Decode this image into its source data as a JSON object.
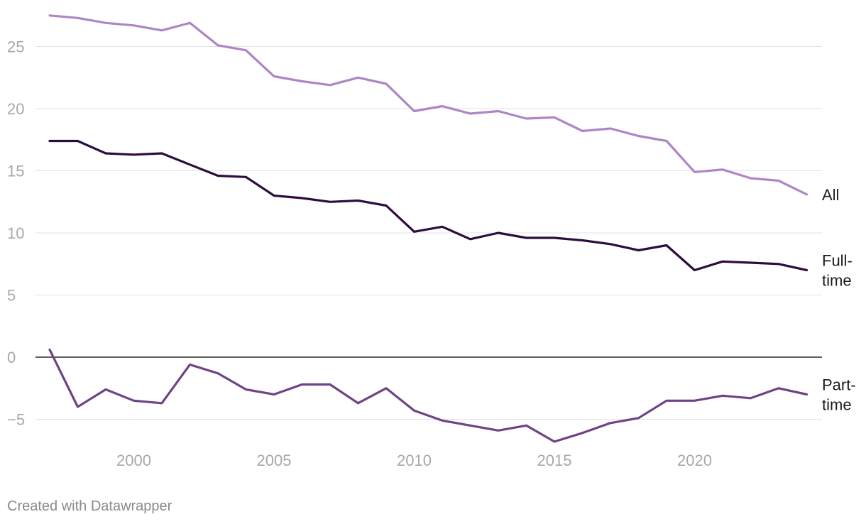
{
  "chart_data": {
    "type": "line",
    "title": "",
    "xlabel": "",
    "ylabel": "",
    "x": [
      1997,
      1998,
      1999,
      2000,
      2001,
      2002,
      2003,
      2004,
      2005,
      2006,
      2007,
      2008,
      2009,
      2010,
      2011,
      2012,
      2013,
      2014,
      2015,
      2016,
      2017,
      2018,
      2019,
      2020,
      2021,
      2022,
      2023,
      2024
    ],
    "x_ticks": [
      "2000",
      "2005",
      "2010",
      "2015",
      "2020"
    ],
    "y_ticks": [
      "25",
      "20",
      "15",
      "10",
      "5",
      "0",
      "−5"
    ],
    "xlim": [
      1996.5,
      2024.3
    ],
    "ylim": [
      -8,
      28
    ],
    "grid": true,
    "series": [
      {
        "name": "All",
        "label_lines": [
          "All"
        ],
        "color": "#ad86c6",
        "values": [
          27.5,
          27.3,
          26.9,
          26.7,
          26.3,
          26.9,
          25.1,
          24.7,
          22.6,
          22.2,
          21.9,
          22.5,
          22.0,
          19.8,
          20.2,
          19.6,
          19.8,
          19.2,
          19.3,
          18.2,
          18.4,
          17.8,
          17.4,
          14.9,
          15.1,
          14.4,
          14.2,
          13.1
        ]
      },
      {
        "name": "Full-time",
        "label_lines": [
          "Full-",
          "time"
        ],
        "color": "#2d0d3d",
        "values": [
          17.4,
          17.4,
          16.4,
          16.3,
          16.4,
          15.5,
          14.6,
          14.5,
          13.0,
          12.8,
          12.5,
          12.6,
          12.2,
          10.1,
          10.5,
          9.5,
          10.0,
          9.6,
          9.6,
          9.4,
          9.1,
          8.6,
          9.0,
          7.0,
          7.7,
          7.6,
          7.5,
          7.0
        ]
      },
      {
        "name": "Part-time",
        "label_lines": [
          "Part-",
          "time"
        ],
        "color": "#6e4484",
        "values": [
          0.6,
          -4.0,
          -2.6,
          -3.5,
          -3.7,
          -0.6,
          -1.3,
          -2.6,
          -3.0,
          -2.2,
          -2.2,
          -3.7,
          -2.5,
          -4.3,
          -5.1,
          -5.5,
          -5.9,
          -5.5,
          -6.8,
          -6.1,
          -5.3,
          -4.9,
          -3.5,
          -3.5,
          -3.1,
          -3.3,
          -2.5,
          -3.0
        ]
      }
    ]
  },
  "footer": {
    "credit": "Created with Datawrapper"
  }
}
